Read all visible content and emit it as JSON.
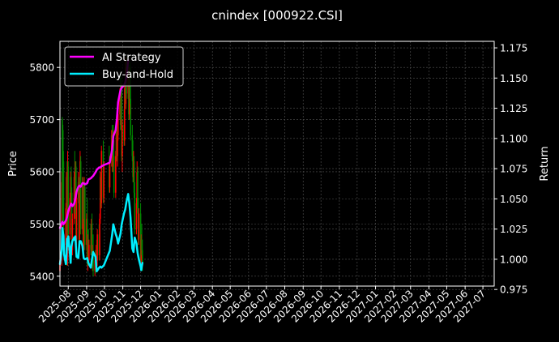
{
  "title": "cnindex [000922.CSI]",
  "chart_data": {
    "type": "line",
    "title": "cnindex [000922.CSI]",
    "ylabel_left": "Price",
    "ylabel_right": "Return",
    "grid": true,
    "legend_position": "top-left",
    "x_ticks": [
      "2025-08",
      "2025-09",
      "2025-10",
      "2025-11",
      "2025-12",
      "2026-01",
      "2026-02",
      "2026-03",
      "2026-04",
      "2026-05",
      "2026-06",
      "2026-07",
      "2026-08",
      "2026-09",
      "2026-10",
      "2026-11",
      "2026-12",
      "2027-01",
      "2027-02",
      "2027-03",
      "2027-04",
      "2027-05",
      "2027-06",
      "2027-07"
    ],
    "y_left_ticks": [
      5400,
      5500,
      5600,
      5700,
      5800
    ],
    "y_left_range": [
      5381,
      5850
    ],
    "y_right_ticks": [
      "0.975",
      "1.000",
      "1.025",
      "1.050",
      "1.075",
      "1.100",
      "1.125",
      "1.150",
      "1.175"
    ],
    "y_right_range": [
      0.9778,
      1.1804
    ],
    "x_range": [
      "2025-07-18",
      "2027-07-20"
    ],
    "colors": {
      "background": "#000000",
      "strategy": "#ff00ff",
      "buy_hold": "#00eeff",
      "candle_up": "#ff0000",
      "candle_down": "#008800",
      "text": "#ffffff",
      "grid": "#555555"
    },
    "candles": [
      {
        "date": "2025-07-18",
        "open": 5410,
        "high": 5450,
        "low": 5400,
        "close": 5430
      },
      {
        "date": "2025-07-21",
        "open": 5430,
        "high": 5600,
        "low": 5420,
        "close": 5580
      },
      {
        "date": "2025-07-22",
        "open": 5700,
        "high": 5705,
        "low": 5500,
        "close": 5520
      },
      {
        "date": "2025-07-23",
        "open": 5680,
        "high": 5690,
        "low": 5600,
        "close": 5620
      },
      {
        "date": "2025-07-24",
        "open": 5620,
        "high": 5640,
        "low": 5440,
        "close": 5450
      },
      {
        "date": "2025-07-25",
        "open": 5450,
        "high": 5480,
        "low": 5430,
        "close": 5460
      },
      {
        "date": "2025-07-28",
        "open": 5460,
        "high": 5540,
        "low": 5450,
        "close": 5530
      },
      {
        "date": "2025-07-29",
        "open": 5530,
        "high": 5600,
        "low": 5500,
        "close": 5590
      },
      {
        "date": "2025-07-30",
        "open": 5590,
        "high": 5620,
        "low": 5420,
        "close": 5430
      },
      {
        "date": "2025-07-31",
        "open": 5430,
        "high": 5640,
        "low": 5420,
        "close": 5610
      },
      {
        "date": "2025-08-01",
        "open": 5610,
        "high": 5620,
        "low": 5470,
        "close": 5480
      },
      {
        "date": "2025-08-04",
        "open": 5480,
        "high": 5560,
        "low": 5470,
        "close": 5550
      },
      {
        "date": "2025-08-05",
        "open": 5550,
        "high": 5600,
        "low": 5530,
        "close": 5590
      },
      {
        "date": "2025-08-06",
        "open": 5590,
        "high": 5610,
        "low": 5540,
        "close": 5560
      },
      {
        "date": "2025-08-07",
        "open": 5560,
        "high": 5570,
        "low": 5440,
        "close": 5450
      },
      {
        "date": "2025-08-08",
        "open": 5450,
        "high": 5520,
        "low": 5440,
        "close": 5510
      },
      {
        "date": "2025-08-11",
        "open": 5510,
        "high": 5600,
        "low": 5500,
        "close": 5590
      },
      {
        "date": "2025-08-12",
        "open": 5590,
        "high": 5640,
        "low": 5520,
        "close": 5530
      },
      {
        "date": "2025-08-13",
        "open": 5530,
        "high": 5620,
        "low": 5510,
        "close": 5610
      },
      {
        "date": "2025-08-14",
        "open": 5610,
        "high": 5620,
        "low": 5460,
        "close": 5470
      },
      {
        "date": "2025-08-15",
        "open": 5470,
        "high": 5560,
        "low": 5460,
        "close": 5550
      },
      {
        "date": "2025-08-18",
        "open": 5550,
        "high": 5600,
        "low": 5540,
        "close": 5580
      },
      {
        "date": "2025-08-19",
        "open": 5580,
        "high": 5590,
        "low": 5460,
        "close": 5470
      },
      {
        "date": "2025-08-20",
        "open": 5470,
        "high": 5560,
        "low": 5460,
        "close": 5540
      },
      {
        "date": "2025-08-21",
        "open": 5540,
        "high": 5640,
        "low": 5530,
        "close": 5620
      },
      {
        "date": "2025-08-22",
        "open": 5620,
        "high": 5630,
        "low": 5480,
        "close": 5490
      },
      {
        "date": "2025-08-25",
        "open": 5490,
        "high": 5590,
        "low": 5480,
        "close": 5580
      },
      {
        "date": "2025-08-26",
        "open": 5580,
        "high": 5590,
        "low": 5440,
        "close": 5450
      },
      {
        "date": "2025-08-27",
        "open": 5450,
        "high": 5510,
        "low": 5440,
        "close": 5500
      },
      {
        "date": "2025-08-28",
        "open": 5500,
        "high": 5590,
        "low": 5490,
        "close": 5570
      },
      {
        "date": "2025-08-29",
        "open": 5570,
        "high": 5580,
        "low": 5450,
        "close": 5460
      },
      {
        "date": "2025-09-01",
        "open": 5460,
        "high": 5520,
        "low": 5450,
        "close": 5510
      },
      {
        "date": "2025-09-02",
        "open": 5510,
        "high": 5550,
        "low": 5420,
        "close": 5430
      },
      {
        "date": "2025-09-03",
        "open": 5430,
        "high": 5480,
        "low": 5410,
        "close": 5470
      },
      {
        "date": "2025-09-04",
        "open": 5470,
        "high": 5490,
        "low": 5420,
        "close": 5430
      },
      {
        "date": "2025-09-05",
        "open": 5430,
        "high": 5470,
        "low": 5420,
        "close": 5460
      },
      {
        "date": "2025-09-08",
        "open": 5460,
        "high": 5500,
        "low": 5440,
        "close": 5450
      },
      {
        "date": "2025-09-09",
        "open": 5450,
        "high": 5510,
        "low": 5440,
        "close": 5500
      },
      {
        "date": "2025-09-10",
        "open": 5500,
        "high": 5520,
        "low": 5420,
        "close": 5430
      },
      {
        "date": "2025-09-11",
        "open": 5430,
        "high": 5460,
        "low": 5410,
        "close": 5450
      },
      {
        "date": "2025-09-12",
        "open": 5450,
        "high": 5480,
        "low": 5400,
        "close": 5410
      },
      {
        "date": "2025-09-15",
        "open": 5410,
        "high": 5440,
        "low": 5400,
        "close": 5430
      },
      {
        "date": "2025-09-16",
        "open": 5430,
        "high": 5450,
        "low": 5405,
        "close": 5420
      },
      {
        "date": "2025-09-17",
        "open": 5420,
        "high": 5460,
        "low": 5410,
        "close": 5450
      },
      {
        "date": "2025-09-18",
        "open": 5450,
        "high": 5470,
        "low": 5420,
        "close": 5430
      },
      {
        "date": "2025-09-19",
        "open": 5430,
        "high": 5490,
        "low": 5420,
        "close": 5480
      },
      {
        "date": "2025-09-22",
        "open": 5480,
        "high": 5500,
        "low": 5430,
        "close": 5440
      },
      {
        "date": "2025-09-23",
        "open": 5440,
        "high": 5520,
        "low": 5430,
        "close": 5510
      },
      {
        "date": "2025-09-24",
        "open": 5510,
        "high": 5600,
        "low": 5500,
        "close": 5590
      },
      {
        "date": "2025-09-25",
        "open": 5590,
        "high": 5600,
        "low": 5530,
        "close": 5540
      },
      {
        "date": "2025-09-26",
        "open": 5540,
        "high": 5650,
        "low": 5530,
        "close": 5640
      },
      {
        "date": "2025-09-29",
        "open": 5640,
        "high": 5660,
        "low": 5540,
        "close": 5550
      },
      {
        "date": "2025-09-30",
        "open": 5550,
        "high": 5620,
        "low": 5540,
        "close": 5610
      },
      {
        "date": "2025-10-09",
        "open": 5610,
        "high": 5650,
        "low": 5560,
        "close": 5570
      },
      {
        "date": "2025-10-10",
        "open": 5570,
        "high": 5630,
        "low": 5560,
        "close": 5620
      },
      {
        "date": "2025-10-13",
        "open": 5620,
        "high": 5680,
        "low": 5610,
        "close": 5670
      },
      {
        "date": "2025-10-14",
        "open": 5670,
        "high": 5690,
        "low": 5600,
        "close": 5610
      },
      {
        "date": "2025-10-15",
        "open": 5610,
        "high": 5680,
        "low": 5600,
        "close": 5660
      },
      {
        "date": "2025-10-16",
        "open": 5660,
        "high": 5690,
        "low": 5620,
        "close": 5630
      },
      {
        "date": "2025-10-17",
        "open": 5630,
        "high": 5660,
        "low": 5550,
        "close": 5560
      },
      {
        "date": "2025-10-20",
        "open": 5560,
        "high": 5640,
        "low": 5550,
        "close": 5630
      },
      {
        "date": "2025-10-21",
        "open": 5630,
        "high": 5700,
        "low": 5620,
        "close": 5690
      },
      {
        "date": "2025-10-22",
        "open": 5690,
        "high": 5700,
        "low": 5620,
        "close": 5630
      },
      {
        "date": "2025-10-23",
        "open": 5630,
        "high": 5680,
        "low": 5610,
        "close": 5670
      },
      {
        "date": "2025-10-24",
        "open": 5670,
        "high": 5720,
        "low": 5660,
        "close": 5710
      },
      {
        "date": "2025-10-27",
        "open": 5710,
        "high": 5760,
        "low": 5700,
        "close": 5750
      },
      {
        "date": "2025-10-28",
        "open": 5750,
        "high": 5790,
        "low": 5680,
        "close": 5690
      },
      {
        "date": "2025-10-29",
        "open": 5690,
        "high": 5770,
        "low": 5680,
        "close": 5760
      },
      {
        "date": "2025-10-30",
        "open": 5760,
        "high": 5780,
        "low": 5620,
        "close": 5630
      },
      {
        "date": "2025-10-31",
        "open": 5630,
        "high": 5700,
        "low": 5600,
        "close": 5690
      },
      {
        "date": "2025-11-03",
        "open": 5690,
        "high": 5720,
        "low": 5650,
        "close": 5660
      },
      {
        "date": "2025-11-04",
        "open": 5660,
        "high": 5770,
        "low": 5650,
        "close": 5760
      },
      {
        "date": "2025-11-05",
        "open": 5760,
        "high": 5800,
        "low": 5720,
        "close": 5730
      },
      {
        "date": "2025-11-06",
        "open": 5730,
        "high": 5820,
        "low": 5720,
        "close": 5810
      },
      {
        "date": "2025-11-07",
        "open": 5810,
        "high": 5820,
        "low": 5740,
        "close": 5750
      },
      {
        "date": "2025-11-10",
        "open": 5750,
        "high": 5810,
        "low": 5740,
        "close": 5800
      },
      {
        "date": "2025-11-11",
        "open": 5800,
        "high": 5805,
        "low": 5700,
        "close": 5710
      },
      {
        "date": "2025-11-12",
        "open": 5710,
        "high": 5800,
        "low": 5700,
        "close": 5790
      },
      {
        "date": "2025-11-13",
        "open": 5790,
        "high": 5810,
        "low": 5730,
        "close": 5740
      },
      {
        "date": "2025-11-14",
        "open": 5740,
        "high": 5800,
        "low": 5660,
        "close": 5670
      },
      {
        "date": "2025-11-17",
        "open": 5670,
        "high": 5690,
        "low": 5620,
        "close": 5630
      },
      {
        "date": "2025-11-18",
        "open": 5630,
        "high": 5660,
        "low": 5580,
        "close": 5590
      },
      {
        "date": "2025-11-19",
        "open": 5590,
        "high": 5640,
        "low": 5580,
        "close": 5620
      },
      {
        "date": "2025-11-20",
        "open": 5620,
        "high": 5630,
        "low": 5550,
        "close": 5560
      },
      {
        "date": "2025-11-21",
        "open": 5560,
        "high": 5580,
        "low": 5480,
        "close": 5490
      },
      {
        "date": "2025-11-24",
        "open": 5490,
        "high": 5550,
        "low": 5480,
        "close": 5540
      },
      {
        "date": "2025-11-25",
        "open": 5540,
        "high": 5620,
        "low": 5530,
        "close": 5600
      },
      {
        "date": "2025-11-26",
        "open": 5600,
        "high": 5610,
        "low": 5520,
        "close": 5530
      },
      {
        "date": "2025-11-27",
        "open": 5530,
        "high": 5550,
        "low": 5460,
        "close": 5470
      },
      {
        "date": "2025-11-28",
        "open": 5470,
        "high": 5530,
        "low": 5460,
        "close": 5520
      },
      {
        "date": "2025-12-01",
        "open": 5520,
        "high": 5540,
        "low": 5420,
        "close": 5430
      },
      {
        "date": "2025-12-02",
        "open": 5430,
        "high": 5480,
        "low": 5410,
        "close": 5470
      },
      {
        "date": "2025-12-03",
        "open": 5470,
        "high": 5500,
        "low": 5440,
        "close": 5450
      },
      {
        "date": "2025-12-04",
        "open": 5450,
        "high": 5470,
        "low": 5410,
        "close": 5420
      }
    ],
    "series": [
      {
        "name": "AI Strategy",
        "x": [
          "2025-07-18",
          "2025-07-21",
          "2025-07-22",
          "2025-07-24",
          "2025-07-28",
          "2025-07-30",
          "2025-08-01",
          "2025-08-04",
          "2025-08-06",
          "2025-08-08",
          "2025-08-11",
          "2025-08-13",
          "2025-08-15",
          "2025-08-18",
          "2025-08-20",
          "2025-08-22",
          "2025-08-25",
          "2025-08-27",
          "2025-08-29",
          "2025-09-02",
          "2025-09-04",
          "2025-09-08",
          "2025-09-10",
          "2025-09-12",
          "2025-09-16",
          "2025-09-18",
          "2025-09-22",
          "2025-09-24",
          "2025-09-26",
          "2025-09-30",
          "2025-10-10",
          "2025-10-14",
          "2025-10-16",
          "2025-10-20",
          "2025-10-22",
          "2025-10-24",
          "2025-10-28",
          "2025-10-30",
          "2025-11-03",
          "2025-11-05",
          "2025-11-07",
          "2025-11-10"
        ],
        "y": [
          1.026,
          1.03,
          1.031,
          1.029,
          1.032,
          1.035,
          1.04,
          1.044,
          1.046,
          1.044,
          1.046,
          1.05,
          1.056,
          1.06,
          1.061,
          1.06,
          1.063,
          1.063,
          1.062,
          1.063,
          1.066,
          1.067,
          1.068,
          1.069,
          1.072,
          1.074,
          1.076,
          1.076,
          1.077,
          1.078,
          1.08,
          1.091,
          1.102,
          1.107,
          1.116,
          1.13,
          1.14,
          1.142,
          1.144,
          1.146,
          1.151,
          1.165
        ]
      },
      {
        "name": "Buy-and-Hold",
        "x": [
          "2025-07-18",
          "2025-07-21",
          "2025-07-22",
          "2025-07-24",
          "2025-07-25",
          "2025-07-28",
          "2025-07-29",
          "2025-07-30",
          "2025-07-31",
          "2025-08-01",
          "2025-08-04",
          "2025-08-05",
          "2025-08-06",
          "2025-08-08",
          "2025-08-11",
          "2025-08-12",
          "2025-08-13",
          "2025-08-14",
          "2025-08-15",
          "2025-08-18",
          "2025-08-20",
          "2025-08-22",
          "2025-08-25",
          "2025-08-27",
          "2025-08-29",
          "2025-09-02",
          "2025-09-04",
          "2025-09-08",
          "2025-09-10",
          "2025-09-12",
          "2025-09-16",
          "2025-09-18",
          "2025-09-22",
          "2025-09-24",
          "2025-09-26",
          "2025-09-30",
          "2025-10-10",
          "2025-10-14",
          "2025-10-16",
          "2025-10-20",
          "2025-10-22",
          "2025-10-24",
          "2025-10-28",
          "2025-10-30",
          "2025-11-03",
          "2025-11-05",
          "2025-11-07",
          "2025-11-10",
          "2025-11-12",
          "2025-11-14",
          "2025-11-17",
          "2025-11-19",
          "2025-11-21",
          "2025-11-24",
          "2025-11-26",
          "2025-11-28",
          "2025-12-01",
          "2025-12-02",
          "2025-12-03",
          "2025-12-04"
        ],
        "y": [
          0.996,
          1.008,
          1.026,
          1.019,
          1.004,
          0.996,
          1.005,
          1.017,
          1.011,
          1.019,
          1.004,
          0.997,
          1.01,
          1.015,
          1.018,
          1.016,
          1.019,
          1.01,
          1.002,
          1.001,
          1.015,
          1.015,
          1.011,
          1.001,
          1.0,
          1.001,
          0.997,
          0.993,
          1.0,
          1.006,
          1.002,
          0.99,
          0.993,
          0.994,
          0.993,
          0.995,
          1.007,
          1.02,
          1.029,
          1.021,
          1.018,
          1.013,
          1.021,
          1.029,
          1.038,
          1.041,
          1.047,
          1.054,
          1.046,
          1.035,
          1.009,
          1.006,
          1.018,
          1.013,
          1.005,
          1.0,
          0.994,
          0.991,
          0.994,
          0.997
        ]
      }
    ]
  }
}
